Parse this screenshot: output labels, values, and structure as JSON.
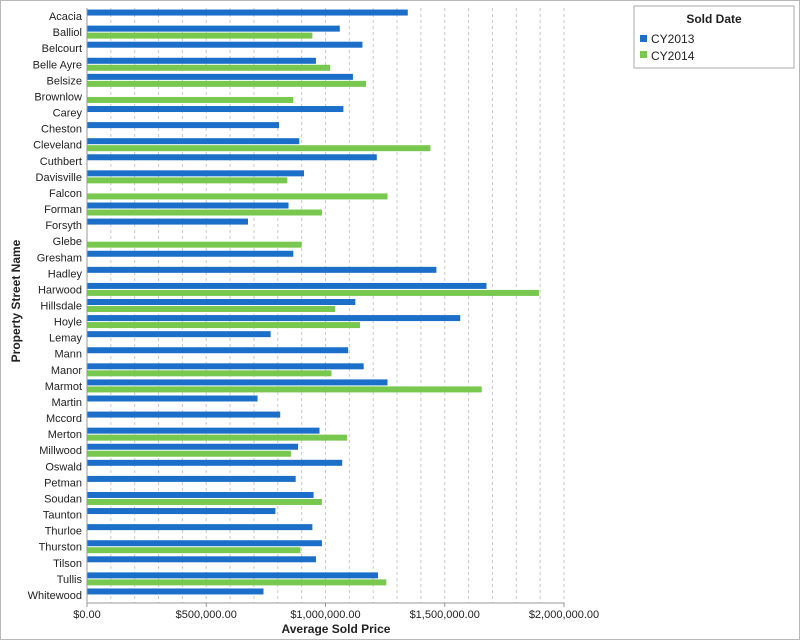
{
  "chart_data": {
    "type": "bar",
    "orientation": "horizontal",
    "title": "",
    "xlabel": "Average Sold Price",
    "ylabel": "Property Street Name",
    "xlim": [
      0,
      2000000
    ],
    "x_ticks": [
      0,
      500000,
      1000000,
      1500000,
      2000000
    ],
    "x_tick_labels": [
      "$0.00",
      "$500,000.00",
      "$1,000,000.00",
      "$1,500,000.00",
      "$2,000,000.00"
    ],
    "grid": "vertical dashed gridlines every 100,000",
    "legend": {
      "title": "Sold Date",
      "position": "top-right"
    },
    "categories": [
      "Acacia",
      "Balliol",
      "Belcourt",
      "Belle Ayre",
      "Belsize",
      "Brownlow",
      "Carey",
      "Cheston",
      "Cleveland",
      "Cuthbert",
      "Davisville",
      "Falcon",
      "Forman",
      "Forsyth",
      "Glebe",
      "Gresham",
      "Hadley",
      "Harwood",
      "Hillsdale",
      "Hoyle",
      "Lemay",
      "Mann",
      "Manor",
      "Marmot",
      "Martin",
      "Mccord",
      "Merton",
      "Millwood",
      "Oswald",
      "Petman",
      "Soudan",
      "Taunton",
      "Thurloe",
      "Thurston",
      "Tilson",
      "Tullis",
      "Whitewood"
    ],
    "series": [
      {
        "name": "CY2013",
        "color": "#1b6fc9",
        "values": [
          1345000,
          1060000,
          1155000,
          960000,
          1115000,
          null,
          1075000,
          805000,
          890000,
          1215000,
          910000,
          null,
          845000,
          675000,
          null,
          865000,
          1465000,
          1675000,
          1125000,
          1565000,
          770000,
          1095000,
          1160000,
          1260000,
          715000,
          810000,
          975000,
          885000,
          1070000,
          875000,
          950000,
          790000,
          945000,
          985000,
          960000,
          1220000,
          740000
        ]
      },
      {
        "name": "CY2014",
        "color": "#78c850",
        "values": [
          null,
          945000,
          null,
          1020000,
          1170000,
          865000,
          null,
          null,
          1440000,
          null,
          840000,
          1260000,
          985000,
          null,
          900000,
          null,
          null,
          1895000,
          1040000,
          1145000,
          null,
          null,
          1025000,
          1655000,
          null,
          null,
          1090000,
          855000,
          null,
          null,
          985000,
          null,
          null,
          895000,
          null,
          1255000,
          null
        ]
      }
    ]
  }
}
